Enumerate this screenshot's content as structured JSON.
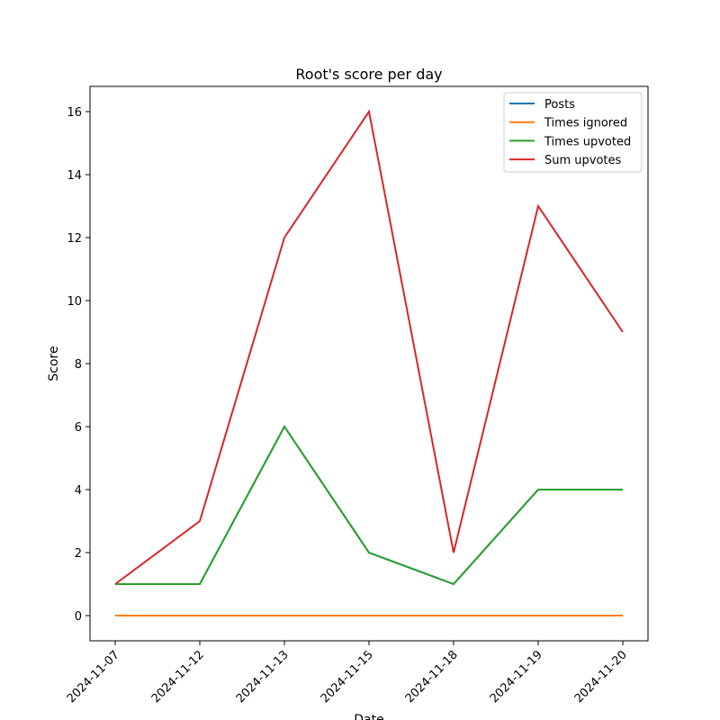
{
  "chart_data": {
    "type": "line",
    "title": "Root's score per day",
    "xlabel": "Date",
    "ylabel": "Score",
    "categories": [
      "2024-11-07",
      "2024-11-12",
      "2024-11-13",
      "2024-11-15",
      "2024-11-18",
      "2024-11-19",
      "2024-11-20"
    ],
    "ylim": [
      -0.8,
      16.8
    ],
    "yticks": [
      0,
      2,
      4,
      6,
      8,
      10,
      12,
      14,
      16
    ],
    "grid": false,
    "legend_position": "top-right",
    "series": [
      {
        "name": "Posts",
        "color": "#1f77b4",
        "values": [
          1,
          1,
          6,
          2,
          1,
          4,
          4
        ]
      },
      {
        "name": "Times ignored",
        "color": "#ff7f0e",
        "values": [
          0,
          0,
          0,
          0,
          0,
          0,
          0
        ]
      },
      {
        "name": "Times upvoted",
        "color": "#2ca02c",
        "values": [
          1,
          1,
          6,
          2,
          1,
          4,
          4
        ]
      },
      {
        "name": "Sum upvotes",
        "color": "#d62728",
        "values": [
          1,
          3,
          12,
          16,
          2,
          13,
          9
        ]
      }
    ]
  }
}
